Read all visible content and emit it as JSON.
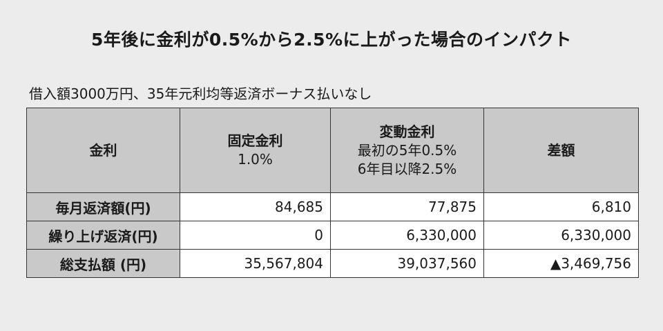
{
  "title": "5年後に金利が0.5%から2.5%に上がった場合のインパクト",
  "subtitle": "借入額3000万円、35年元利均等返済ボーナス払いなし",
  "table": {
    "headers": [
      {
        "main": "金利",
        "sub": []
      },
      {
        "main": "固定金利",
        "sub": [
          "1.0%"
        ]
      },
      {
        "main": "変動金利",
        "sub": [
          "最初の5年0.5%",
          "6年目以降2.5%"
        ]
      },
      {
        "main": "差額",
        "sub": []
      }
    ],
    "rows": [
      {
        "label": "毎月返済額(円)",
        "fixed": "84,685",
        "variable": "77,875",
        "diff": "6,810"
      },
      {
        "label": "繰り上げ返済(円)",
        "fixed": "0",
        "variable": "6,330,000",
        "diff": "6,330,000"
      },
      {
        "label": "総支払額 (円)",
        "fixed": "35,567,804",
        "variable": "39,037,560",
        "diff": "▲3,469,756"
      }
    ]
  }
}
